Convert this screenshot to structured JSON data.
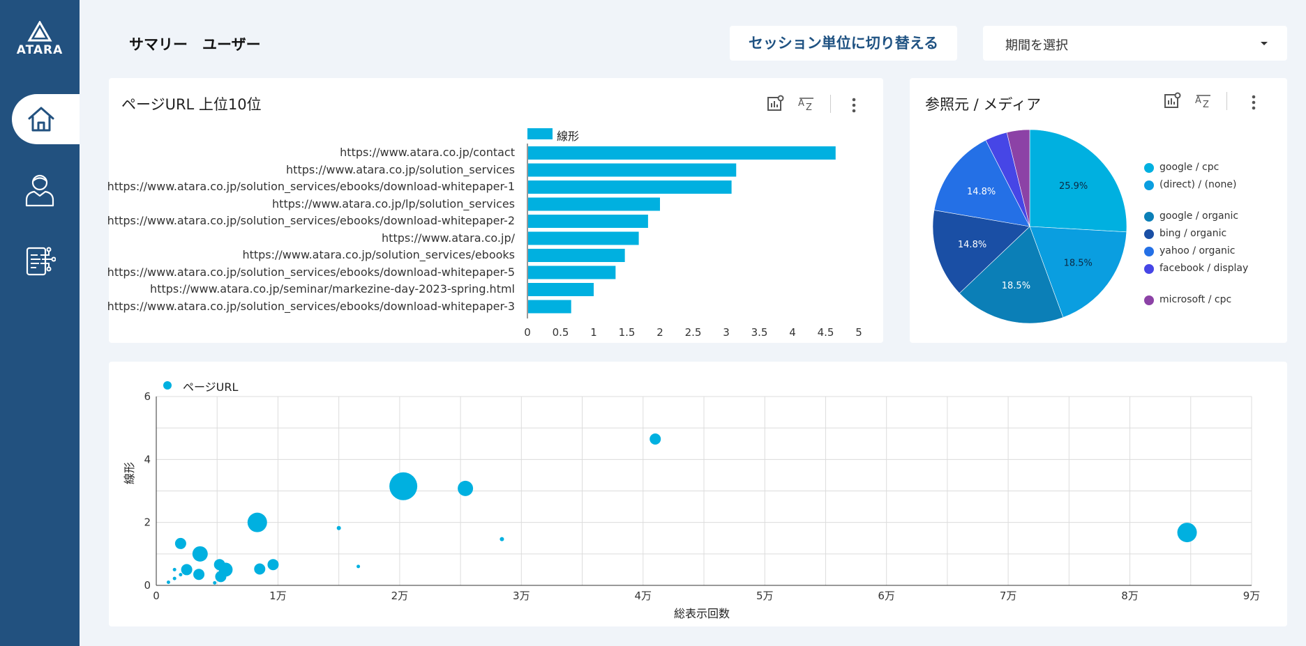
{
  "brand": {
    "name": "ATARA"
  },
  "header": {
    "title": "サマリー　ユーザー",
    "switch_button": "セッション単位に切り替える",
    "period_select": "期間を選択"
  },
  "sidebar": {
    "items": [
      {
        "name": "home",
        "icon": "home-icon",
        "active": true
      },
      {
        "name": "user",
        "icon": "user-icon",
        "active": false
      },
      {
        "name": "devices",
        "icon": "device-network-icon",
        "active": false
      }
    ]
  },
  "bar_card": {
    "title": "ページURL 上位10位",
    "chart_data": {
      "type": "bar",
      "orientation": "horizontal",
      "legend": [
        "線形"
      ],
      "categories": [
        "https://www.atara.co.jp/contact",
        "https://www.atara.co.jp/solution_services",
        "https://www.atara.co.jp/solution_services/ebooks/download-whitepaper-1",
        "https://www.atara.co.jp/lp/solution_services",
        "https://www.atara.co.jp/solution_services/ebooks/download-whitepaper-2",
        "https://www.atara.co.jp/",
        "https://www.atara.co.jp/solution_services/ebooks",
        "https://www.atara.co.jp/solution_services/ebooks/download-whitepaper-5",
        "https://www.atara.co.jp/seminar/markezine-day-2023-spring.html",
        "https://www.atara.co.jp/solution_services/ebooks/download-whitepaper-3"
      ],
      "series": [
        {
          "name": "線形",
          "values": [
            4.65,
            3.15,
            3.08,
            2.0,
            1.82,
            1.68,
            1.47,
            1.33,
            1.0,
            0.66
          ]
        }
      ],
      "xlim": [
        0,
        5
      ],
      "xticks": [
        "0",
        "0.5",
        "1",
        "1.5",
        "2",
        "2.5",
        "3",
        "3.5",
        "4",
        "4.5",
        "5"
      ],
      "color": "#00b0e0"
    }
  },
  "pie_card": {
    "title": "参照元 / メディア",
    "chart_data": {
      "type": "pie",
      "slices": [
        {
          "label": "google / cpc",
          "value": 25.9,
          "color": "#00b0e0",
          "shown": "25.9%"
        },
        {
          "label": "(direct) / (none)",
          "value": 18.5,
          "color": "#0a9ee0",
          "shown": "18.5%"
        },
        {
          "label": "google / organic",
          "value": 18.5,
          "color": "#0b7fb7",
          "shown": "18.5%"
        },
        {
          "label": "bing / organic",
          "value": 14.8,
          "color": "#1a4fa5",
          "shown": "14.8%"
        },
        {
          "label": "yahoo / organic",
          "value": 14.8,
          "color": "#2470e6",
          "shown": "14.8%"
        },
        {
          "label": "facebook / display",
          "value": 3.7,
          "color": "#4646e6",
          "shown": ""
        },
        {
          "label": "microsoft / cpc",
          "value": 3.8,
          "color": "#8c42a6",
          "shown": ""
        }
      ]
    }
  },
  "scatter_card": {
    "chart_data": {
      "type": "scatter",
      "legend": [
        "ページURL"
      ],
      "xlabel": "総表示回数",
      "ylabel": "線形",
      "xlim": [
        0,
        90000
      ],
      "ylim": [
        0,
        6
      ],
      "xticks": [
        "0",
        "1万",
        "2万",
        "3万",
        "4万",
        "5万",
        "6万",
        "7万",
        "8万",
        "9万"
      ],
      "yticks": [
        "0",
        "2",
        "4",
        "6"
      ],
      "color": "#00b0e0",
      "points": [
        {
          "x": 41000,
          "y": 4.65,
          "size": 8
        },
        {
          "x": 20300,
          "y": 3.15,
          "size": 20
        },
        {
          "x": 25400,
          "y": 3.08,
          "size": 11
        },
        {
          "x": 8300,
          "y": 2.0,
          "size": 14
        },
        {
          "x": 84700,
          "y": 1.68,
          "size": 14
        },
        {
          "x": 15000,
          "y": 1.82,
          "size": 3
        },
        {
          "x": 28400,
          "y": 1.47,
          "size": 3
        },
        {
          "x": 2000,
          "y": 1.33,
          "size": 8
        },
        {
          "x": 3600,
          "y": 1.0,
          "size": 11
        },
        {
          "x": 9600,
          "y": 0.66,
          "size": 8
        },
        {
          "x": 5200,
          "y": 0.66,
          "size": 8
        },
        {
          "x": 5700,
          "y": 0.5,
          "size": 10
        },
        {
          "x": 8500,
          "y": 0.52,
          "size": 8
        },
        {
          "x": 2500,
          "y": 0.5,
          "size": 8
        },
        {
          "x": 3500,
          "y": 0.35,
          "size": 8
        },
        {
          "x": 5300,
          "y": 0.28,
          "size": 8
        },
        {
          "x": 16600,
          "y": 0.6,
          "size": 2.5
        },
        {
          "x": 1500,
          "y": 0.5,
          "size": 2.5
        },
        {
          "x": 2000,
          "y": 0.34,
          "size": 2.5
        },
        {
          "x": 1500,
          "y": 0.22,
          "size": 2.5
        },
        {
          "x": 1000,
          "y": 0.1,
          "size": 2.5
        },
        {
          "x": 4800,
          "y": 0.08,
          "size": 2.5
        }
      ]
    }
  }
}
